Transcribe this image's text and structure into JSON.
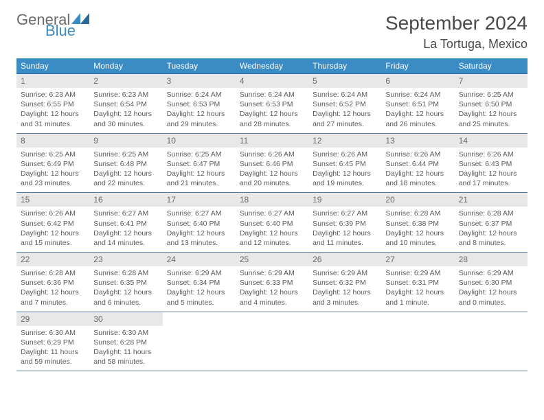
{
  "brand": {
    "main": "General",
    "sub": "Blue"
  },
  "title": "September 2024",
  "location": "La Tortuga, Mexico",
  "colors": {
    "header_bg": "#3b8bc4",
    "header_text": "#ffffff",
    "daynum_bg": "#e8e8e8",
    "daynum_text": "#6a6a6a",
    "cell_text": "#5a5a5a",
    "border": "#5a7a9a",
    "brand_blue": "#3b8bc4",
    "brand_gray": "#6a6a6a"
  },
  "day_headers": [
    "Sunday",
    "Monday",
    "Tuesday",
    "Wednesday",
    "Thursday",
    "Friday",
    "Saturday"
  ],
  "weeks": [
    [
      {
        "n": "1",
        "sr": "Sunrise: 6:23 AM",
        "ss": "Sunset: 6:55 PM",
        "dl": "Daylight: 12 hours and 31 minutes."
      },
      {
        "n": "2",
        "sr": "Sunrise: 6:23 AM",
        "ss": "Sunset: 6:54 PM",
        "dl": "Daylight: 12 hours and 30 minutes."
      },
      {
        "n": "3",
        "sr": "Sunrise: 6:24 AM",
        "ss": "Sunset: 6:53 PM",
        "dl": "Daylight: 12 hours and 29 minutes."
      },
      {
        "n": "4",
        "sr": "Sunrise: 6:24 AM",
        "ss": "Sunset: 6:53 PM",
        "dl": "Daylight: 12 hours and 28 minutes."
      },
      {
        "n": "5",
        "sr": "Sunrise: 6:24 AM",
        "ss": "Sunset: 6:52 PM",
        "dl": "Daylight: 12 hours and 27 minutes."
      },
      {
        "n": "6",
        "sr": "Sunrise: 6:24 AM",
        "ss": "Sunset: 6:51 PM",
        "dl": "Daylight: 12 hours and 26 minutes."
      },
      {
        "n": "7",
        "sr": "Sunrise: 6:25 AM",
        "ss": "Sunset: 6:50 PM",
        "dl": "Daylight: 12 hours and 25 minutes."
      }
    ],
    [
      {
        "n": "8",
        "sr": "Sunrise: 6:25 AM",
        "ss": "Sunset: 6:49 PM",
        "dl": "Daylight: 12 hours and 23 minutes."
      },
      {
        "n": "9",
        "sr": "Sunrise: 6:25 AM",
        "ss": "Sunset: 6:48 PM",
        "dl": "Daylight: 12 hours and 22 minutes."
      },
      {
        "n": "10",
        "sr": "Sunrise: 6:25 AM",
        "ss": "Sunset: 6:47 PM",
        "dl": "Daylight: 12 hours and 21 minutes."
      },
      {
        "n": "11",
        "sr": "Sunrise: 6:26 AM",
        "ss": "Sunset: 6:46 PM",
        "dl": "Daylight: 12 hours and 20 minutes."
      },
      {
        "n": "12",
        "sr": "Sunrise: 6:26 AM",
        "ss": "Sunset: 6:45 PM",
        "dl": "Daylight: 12 hours and 19 minutes."
      },
      {
        "n": "13",
        "sr": "Sunrise: 6:26 AM",
        "ss": "Sunset: 6:44 PM",
        "dl": "Daylight: 12 hours and 18 minutes."
      },
      {
        "n": "14",
        "sr": "Sunrise: 6:26 AM",
        "ss": "Sunset: 6:43 PM",
        "dl": "Daylight: 12 hours and 17 minutes."
      }
    ],
    [
      {
        "n": "15",
        "sr": "Sunrise: 6:26 AM",
        "ss": "Sunset: 6:42 PM",
        "dl": "Daylight: 12 hours and 15 minutes."
      },
      {
        "n": "16",
        "sr": "Sunrise: 6:27 AM",
        "ss": "Sunset: 6:41 PM",
        "dl": "Daylight: 12 hours and 14 minutes."
      },
      {
        "n": "17",
        "sr": "Sunrise: 6:27 AM",
        "ss": "Sunset: 6:40 PM",
        "dl": "Daylight: 12 hours and 13 minutes."
      },
      {
        "n": "18",
        "sr": "Sunrise: 6:27 AM",
        "ss": "Sunset: 6:40 PM",
        "dl": "Daylight: 12 hours and 12 minutes."
      },
      {
        "n": "19",
        "sr": "Sunrise: 6:27 AM",
        "ss": "Sunset: 6:39 PM",
        "dl": "Daylight: 12 hours and 11 minutes."
      },
      {
        "n": "20",
        "sr": "Sunrise: 6:28 AM",
        "ss": "Sunset: 6:38 PM",
        "dl": "Daylight: 12 hours and 10 minutes."
      },
      {
        "n": "21",
        "sr": "Sunrise: 6:28 AM",
        "ss": "Sunset: 6:37 PM",
        "dl": "Daylight: 12 hours and 8 minutes."
      }
    ],
    [
      {
        "n": "22",
        "sr": "Sunrise: 6:28 AM",
        "ss": "Sunset: 6:36 PM",
        "dl": "Daylight: 12 hours and 7 minutes."
      },
      {
        "n": "23",
        "sr": "Sunrise: 6:28 AM",
        "ss": "Sunset: 6:35 PM",
        "dl": "Daylight: 12 hours and 6 minutes."
      },
      {
        "n": "24",
        "sr": "Sunrise: 6:29 AM",
        "ss": "Sunset: 6:34 PM",
        "dl": "Daylight: 12 hours and 5 minutes."
      },
      {
        "n": "25",
        "sr": "Sunrise: 6:29 AM",
        "ss": "Sunset: 6:33 PM",
        "dl": "Daylight: 12 hours and 4 minutes."
      },
      {
        "n": "26",
        "sr": "Sunrise: 6:29 AM",
        "ss": "Sunset: 6:32 PM",
        "dl": "Daylight: 12 hours and 3 minutes."
      },
      {
        "n": "27",
        "sr": "Sunrise: 6:29 AM",
        "ss": "Sunset: 6:31 PM",
        "dl": "Daylight: 12 hours and 1 minute."
      },
      {
        "n": "28",
        "sr": "Sunrise: 6:29 AM",
        "ss": "Sunset: 6:30 PM",
        "dl": "Daylight: 12 hours and 0 minutes."
      }
    ],
    [
      {
        "n": "29",
        "sr": "Sunrise: 6:30 AM",
        "ss": "Sunset: 6:29 PM",
        "dl": "Daylight: 11 hours and 59 minutes."
      },
      {
        "n": "30",
        "sr": "Sunrise: 6:30 AM",
        "ss": "Sunset: 6:28 PM",
        "dl": "Daylight: 11 hours and 58 minutes."
      },
      null,
      null,
      null,
      null,
      null
    ]
  ]
}
